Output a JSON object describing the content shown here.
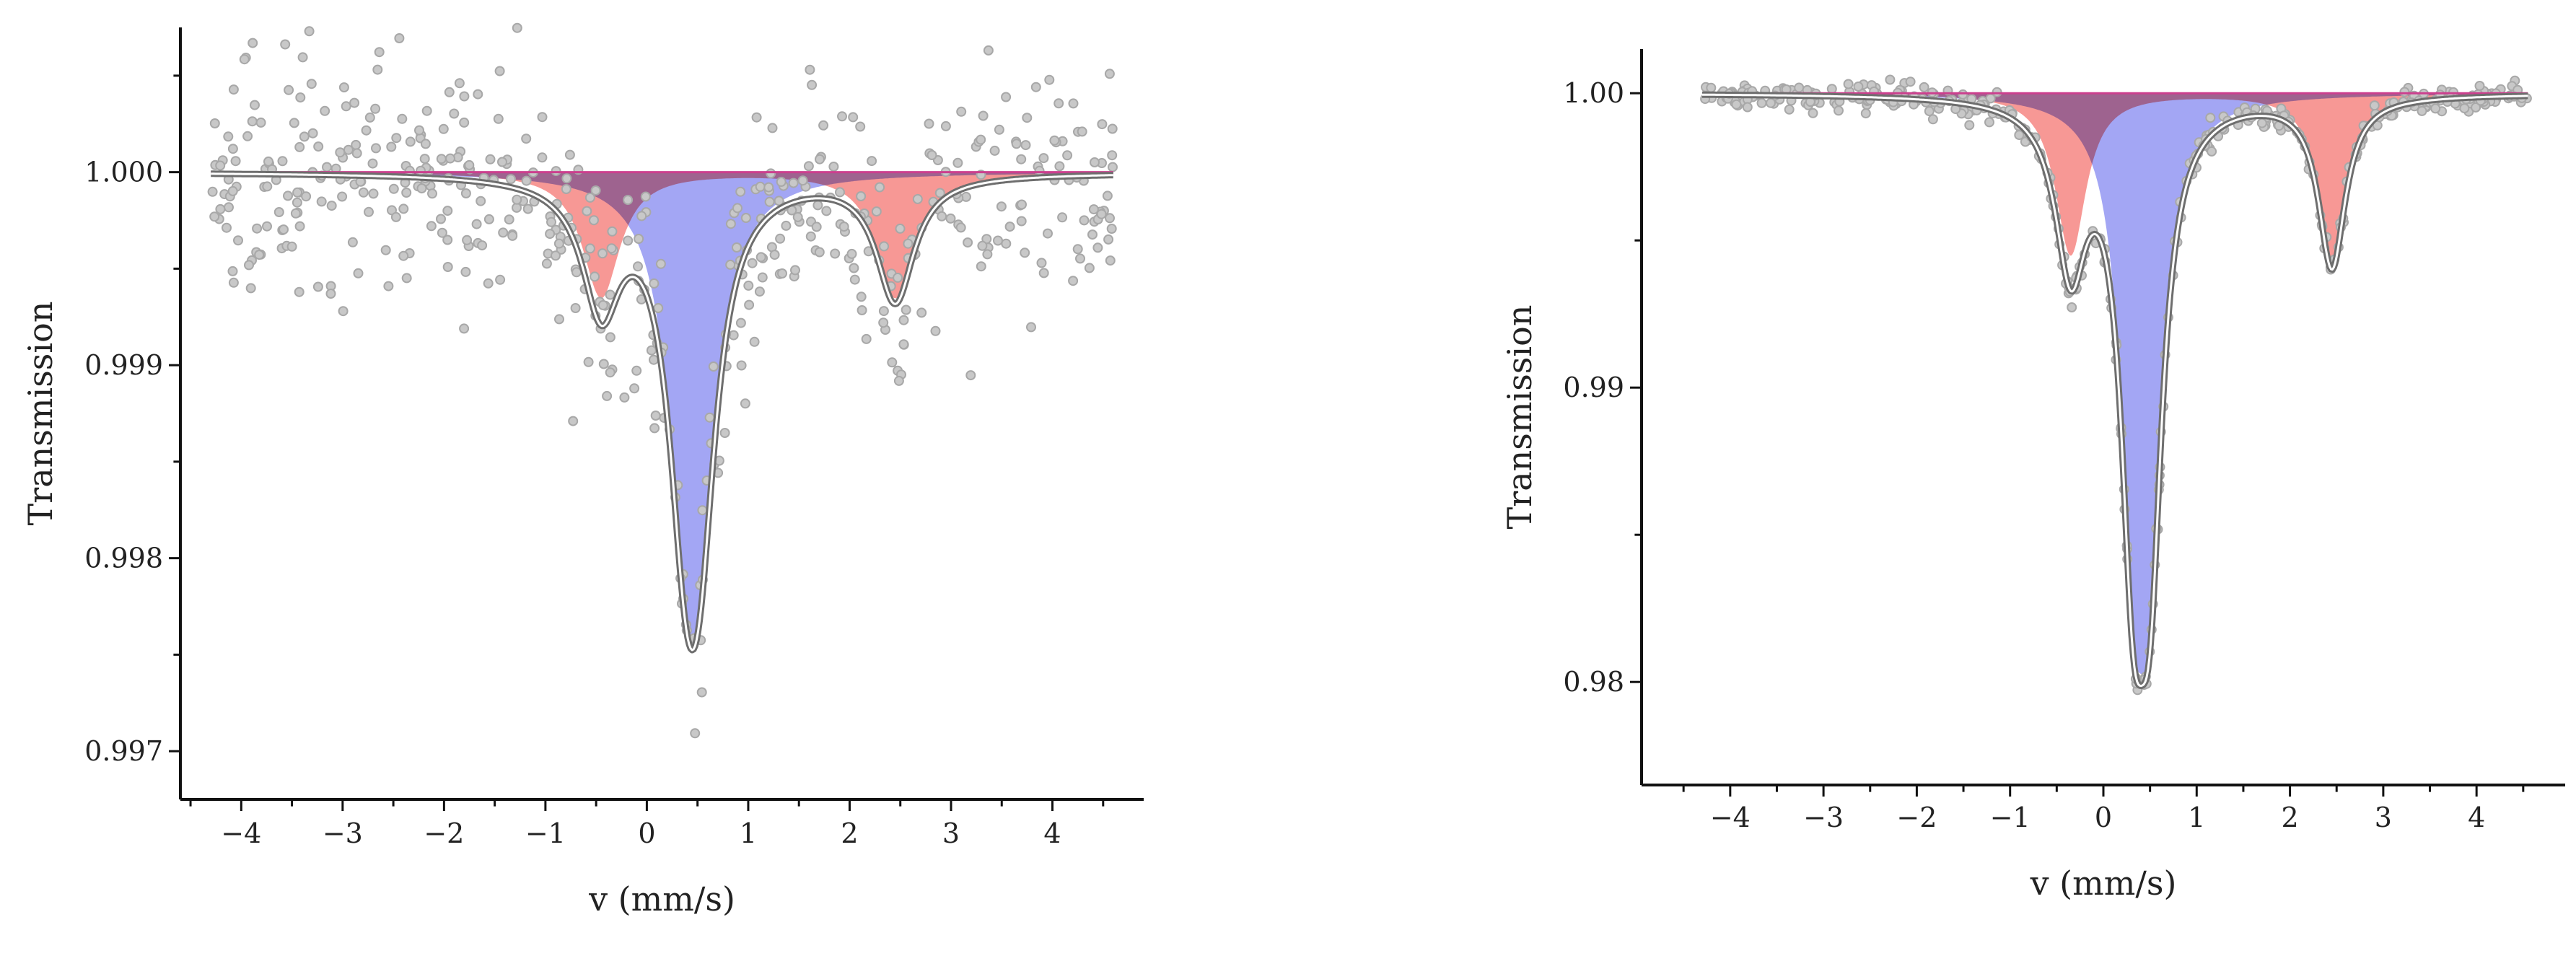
{
  "colors": {
    "doublet_1": "#f4706c",
    "doublet_2": "#6a70ee",
    "points": "#c8c8c8",
    "fit": "#6e6e6e",
    "baseline": "#cc3f8e"
  },
  "chart_data": [
    {
      "type": "line",
      "title": "",
      "xlabel": "v (mm/s)",
      "ylabel": "Transmission",
      "xlim": [
        -4.6,
        4.9
      ],
      "ylim": [
        0.99675,
        1.00075
      ],
      "x_ticks": [
        -4,
        -3,
        -2,
        -1,
        0,
        1,
        2,
        3,
        4
      ],
      "x_tick_labels": [
        "−4",
        "−3",
        "−2",
        "−1",
        "0",
        "1",
        "2",
        "3",
        "4"
      ],
      "y_ticks": [
        1.0,
        0.999,
        0.998,
        0.997
      ],
      "y_tick_labels": [
        "1.000",
        "0.999",
        "0.998",
        "0.997"
      ],
      "x_range_data": [
        -4.3,
        4.6
      ],
      "grid": false,
      "legend": "none",
      "series": [
        {
          "component": "doublet_1",
          "shape": "lorentzian-doublet",
          "lines": [
            {
              "center": -0.45,
              "fwhm": 0.45,
              "depth": 0.00065
            },
            {
              "center": 2.45,
              "fwhm": 0.45,
              "depth": 0.00065
            }
          ]
        },
        {
          "component": "doublet_2",
          "shape": "lorentzian-doublet",
          "lines": [
            {
              "center": 0.38,
              "fwhm": 0.42,
              "depth": 0.00135
            },
            {
              "center": 0.52,
              "fwhm": 0.42,
              "depth": 0.00135
            }
          ]
        },
        {
          "component": "fit",
          "shape": "sum-of-components"
        },
        {
          "component": "points",
          "shape": "scatter",
          "count": 520,
          "noise_sd": 0.00028,
          "min_y": 0.9969
        }
      ]
    },
    {
      "type": "line",
      "title": "",
      "xlabel": "v (mm/s)",
      "ylabel": "Transmission",
      "xlim": [
        -4.95,
        4.95
      ],
      "ylim": [
        0.9765,
        1.0015
      ],
      "x_ticks": [
        -4,
        -3,
        -2,
        -1,
        0,
        1,
        2,
        3,
        4
      ],
      "x_tick_labels": [
        "−4",
        "−3",
        "−2",
        "−1",
        "0",
        "1",
        "2",
        "3",
        "4"
      ],
      "y_ticks": [
        1.0,
        0.99,
        0.98
      ],
      "y_tick_labels": [
        "1.00",
        "0.99",
        "0.98"
      ],
      "x_range_data": [
        -4.3,
        4.55
      ],
      "grid": false,
      "legend": "none",
      "series": [
        {
          "component": "doublet_1",
          "shape": "lorentzian-doublet",
          "lines": [
            {
              "center": -0.35,
              "fwhm": 0.4,
              "depth": 0.0055
            },
            {
              "center": 2.45,
              "fwhm": 0.35,
              "depth": 0.0058
            }
          ]
        },
        {
          "component": "doublet_2",
          "shape": "lorentzian-doublet",
          "lines": [
            {
              "center": 0.32,
              "fwhm": 0.33,
              "depth": 0.0128
            },
            {
              "center": 0.5,
              "fwhm": 0.33,
              "depth": 0.0128
            }
          ]
        },
        {
          "component": "fit",
          "shape": "sum-of-components"
        },
        {
          "component": "points",
          "shape": "scatter",
          "count": 420,
          "noise_sd": 0.00025
        }
      ]
    }
  ]
}
